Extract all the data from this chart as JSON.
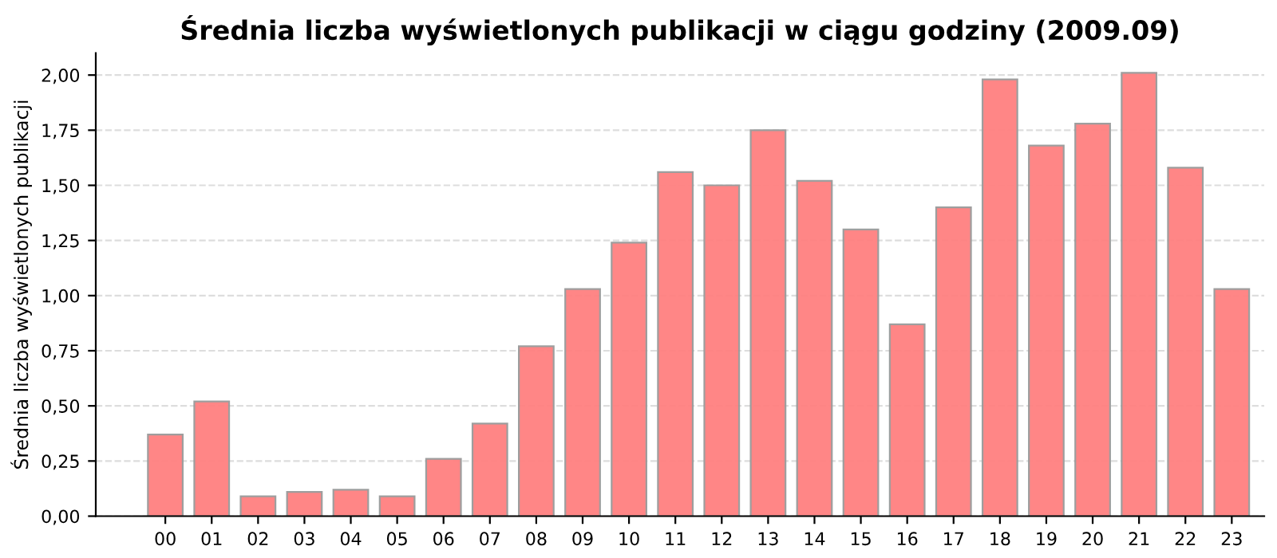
{
  "chart_data": {
    "type": "bar",
    "title": "Średnia liczba wyświetlonych publikacji w ciągu godziny (2009.09)",
    "ylabel": "Średnia liczba wyświetlonych publikacji",
    "categories": [
      "00",
      "01",
      "02",
      "03",
      "04",
      "05",
      "06",
      "07",
      "08",
      "09",
      "10",
      "11",
      "12",
      "13",
      "14",
      "15",
      "16",
      "17",
      "18",
      "19",
      "20",
      "21",
      "22",
      "23"
    ],
    "values": [
      0.37,
      0.52,
      0.09,
      0.11,
      0.12,
      0.09,
      0.26,
      0.42,
      0.77,
      1.03,
      1.24,
      1.56,
      1.5,
      1.75,
      1.52,
      1.3,
      0.87,
      1.4,
      1.98,
      1.68,
      1.78,
      2.01,
      1.58,
      1.03
    ],
    "color": "#ff8080",
    "ylim": [
      0,
      2.1
    ],
    "yticks": [
      {
        "value": 0,
        "label": "0,00"
      },
      {
        "value": 0.25,
        "label": "0,25"
      },
      {
        "value": 0.5,
        "label": "0,50"
      },
      {
        "value": 0.75,
        "label": "0,75"
      },
      {
        "value": 1,
        "label": "1,00"
      },
      {
        "value": 1.25,
        "label": "1,25"
      },
      {
        "value": 1.5,
        "label": "1,50"
      },
      {
        "value": 1.75,
        "label": "1,75"
      },
      {
        "value": 2,
        "label": "2,00"
      }
    ],
    "grid": "y"
  }
}
